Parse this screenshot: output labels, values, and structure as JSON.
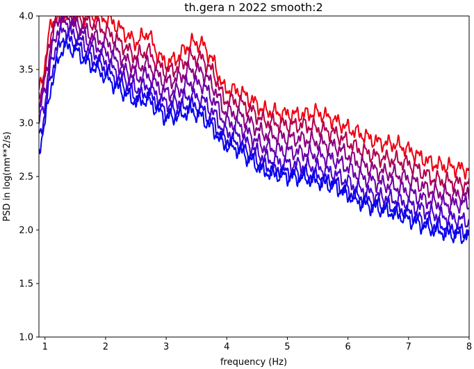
{
  "chart_data": {
    "type": "line",
    "title": "th.gera n 2022 smooth:2",
    "xlabel": "frequency (Hz)",
    "ylabel": "PSD in log(nm**2/s)",
    "xlim": [
      0.9,
      8.0
    ],
    "ylim": [
      1.0,
      4.0
    ],
    "x_ticks": [
      "1",
      "2",
      "3",
      "4",
      "5",
      "6",
      "7",
      "8"
    ],
    "y_ticks": [
      "1.0",
      "1.5",
      "2.0",
      "2.5",
      "3.0",
      "3.5",
      "4.0"
    ],
    "grid": false,
    "series": [
      {
        "color": "#ee0011",
        "points": [
          [
            0.9,
            3.3
          ],
          [
            1.0,
            3.55
          ],
          [
            1.1,
            3.95
          ],
          [
            1.2,
            4.0
          ],
          [
            1.3,
            4.0
          ],
          [
            1.5,
            4.0
          ],
          [
            1.7,
            4.0
          ],
          [
            1.9,
            4.0
          ],
          [
            2.1,
            3.95
          ],
          [
            2.3,
            3.85
          ],
          [
            2.5,
            3.75
          ],
          [
            2.7,
            3.85
          ],
          [
            2.85,
            3.65
          ],
          [
            3.0,
            3.55
          ],
          [
            3.2,
            3.62
          ],
          [
            3.4,
            3.75
          ],
          [
            3.6,
            3.74
          ],
          [
            3.8,
            3.55
          ],
          [
            3.95,
            3.32
          ],
          [
            4.2,
            3.3
          ],
          [
            4.4,
            3.22
          ],
          [
            4.6,
            3.12
          ],
          [
            4.8,
            3.1
          ],
          [
            5.0,
            3.08
          ],
          [
            5.3,
            3.08
          ],
          [
            5.5,
            3.1
          ],
          [
            5.8,
            3.02
          ],
          [
            6.0,
            2.95
          ],
          [
            6.2,
            2.9
          ],
          [
            6.5,
            2.82
          ],
          [
            6.8,
            2.8
          ],
          [
            7.0,
            2.75
          ],
          [
            7.2,
            2.68
          ],
          [
            7.4,
            2.62
          ],
          [
            7.6,
            2.6
          ],
          [
            7.8,
            2.58
          ],
          [
            8.0,
            2.56
          ]
        ]
      },
      {
        "color": "#b0004e",
        "points": [
          [
            0.9,
            3.25
          ],
          [
            1.0,
            3.45
          ],
          [
            1.1,
            3.85
          ],
          [
            1.2,
            4.0
          ],
          [
            1.3,
            4.0
          ],
          [
            1.5,
            4.0
          ],
          [
            1.7,
            3.95
          ],
          [
            1.9,
            3.9
          ],
          [
            2.1,
            3.82
          ],
          [
            2.3,
            3.72
          ],
          [
            2.5,
            3.62
          ],
          [
            2.7,
            3.68
          ],
          [
            2.85,
            3.55
          ],
          [
            3.0,
            3.48
          ],
          [
            3.2,
            3.52
          ],
          [
            3.4,
            3.62
          ],
          [
            3.6,
            3.6
          ],
          [
            3.8,
            3.45
          ],
          [
            3.95,
            3.22
          ],
          [
            4.2,
            3.2
          ],
          [
            4.4,
            3.12
          ],
          [
            4.6,
            3.02
          ],
          [
            4.8,
            3.0
          ],
          [
            5.0,
            2.98
          ],
          [
            5.3,
            2.98
          ],
          [
            5.5,
            2.95
          ],
          [
            5.8,
            2.9
          ],
          [
            6.0,
            2.82
          ],
          [
            6.2,
            2.75
          ],
          [
            6.5,
            2.68
          ],
          [
            6.8,
            2.65
          ],
          [
            7.0,
            2.62
          ],
          [
            7.2,
            2.55
          ],
          [
            7.4,
            2.48
          ],
          [
            7.6,
            2.46
          ],
          [
            7.8,
            2.44
          ],
          [
            8.0,
            2.42
          ]
        ]
      },
      {
        "color": "#8a0080",
        "points": [
          [
            0.9,
            3.2
          ],
          [
            1.0,
            3.38
          ],
          [
            1.1,
            3.75
          ],
          [
            1.2,
            3.95
          ],
          [
            1.3,
            4.0
          ],
          [
            1.5,
            3.95
          ],
          [
            1.7,
            3.85
          ],
          [
            1.9,
            3.78
          ],
          [
            2.1,
            3.72
          ],
          [
            2.3,
            3.6
          ],
          [
            2.5,
            3.52
          ],
          [
            2.7,
            3.55
          ],
          [
            2.85,
            3.45
          ],
          [
            3.0,
            3.38
          ],
          [
            3.2,
            3.42
          ],
          [
            3.4,
            3.5
          ],
          [
            3.6,
            3.48
          ],
          [
            3.8,
            3.32
          ],
          [
            3.95,
            3.12
          ],
          [
            4.2,
            3.08
          ],
          [
            4.4,
            3.0
          ],
          [
            4.6,
            2.9
          ],
          [
            4.8,
            2.88
          ],
          [
            5.0,
            2.86
          ],
          [
            5.3,
            2.85
          ],
          [
            5.5,
            2.82
          ],
          [
            5.8,
            2.78
          ],
          [
            6.0,
            2.7
          ],
          [
            6.2,
            2.62
          ],
          [
            6.5,
            2.55
          ],
          [
            6.8,
            2.52
          ],
          [
            7.0,
            2.48
          ],
          [
            7.2,
            2.42
          ],
          [
            7.4,
            2.36
          ],
          [
            7.6,
            2.34
          ],
          [
            7.8,
            2.32
          ],
          [
            8.0,
            2.32
          ]
        ]
      },
      {
        "color": "#6a00a8",
        "points": [
          [
            0.9,
            3.1
          ],
          [
            1.0,
            3.3
          ],
          [
            1.1,
            3.65
          ],
          [
            1.2,
            3.85
          ],
          [
            1.3,
            3.95
          ],
          [
            1.5,
            3.9
          ],
          [
            1.7,
            3.78
          ],
          [
            1.9,
            3.7
          ],
          [
            2.1,
            3.62
          ],
          [
            2.3,
            3.5
          ],
          [
            2.5,
            3.42
          ],
          [
            2.7,
            3.45
          ],
          [
            2.85,
            3.35
          ],
          [
            3.0,
            3.28
          ],
          [
            3.2,
            3.3
          ],
          [
            3.4,
            3.38
          ],
          [
            3.6,
            3.36
          ],
          [
            3.8,
            3.2
          ],
          [
            3.95,
            3.02
          ],
          [
            4.2,
            2.98
          ],
          [
            4.4,
            2.88
          ],
          [
            4.6,
            2.78
          ],
          [
            4.8,
            2.76
          ],
          [
            5.0,
            2.74
          ],
          [
            5.3,
            2.72
          ],
          [
            5.5,
            2.7
          ],
          [
            5.8,
            2.65
          ],
          [
            6.0,
            2.58
          ],
          [
            6.2,
            2.5
          ],
          [
            6.5,
            2.44
          ],
          [
            6.8,
            2.4
          ],
          [
            7.0,
            2.36
          ],
          [
            7.2,
            2.3
          ],
          [
            7.4,
            2.26
          ],
          [
            7.6,
            2.24
          ],
          [
            7.8,
            2.24
          ],
          [
            8.0,
            2.25
          ]
        ]
      },
      {
        "color": "#4a00c8",
        "points": [
          [
            0.9,
            3.0
          ],
          [
            1.0,
            3.2
          ],
          [
            1.1,
            3.55
          ],
          [
            1.2,
            3.75
          ],
          [
            1.3,
            3.88
          ],
          [
            1.5,
            3.82
          ],
          [
            1.7,
            3.7
          ],
          [
            1.9,
            3.62
          ],
          [
            2.1,
            3.52
          ],
          [
            2.3,
            3.42
          ],
          [
            2.5,
            3.32
          ],
          [
            2.7,
            3.35
          ],
          [
            2.85,
            3.25
          ],
          [
            3.0,
            3.18
          ],
          [
            3.2,
            3.2
          ],
          [
            3.4,
            3.26
          ],
          [
            3.6,
            3.22
          ],
          [
            3.8,
            3.08
          ],
          [
            3.95,
            2.92
          ],
          [
            4.2,
            2.88
          ],
          [
            4.4,
            2.78
          ],
          [
            4.6,
            2.68
          ],
          [
            4.8,
            2.64
          ],
          [
            5.0,
            2.62
          ],
          [
            5.3,
            2.6
          ],
          [
            5.5,
            2.58
          ],
          [
            5.8,
            2.52
          ],
          [
            6.0,
            2.45
          ],
          [
            6.2,
            2.38
          ],
          [
            6.5,
            2.32
          ],
          [
            6.8,
            2.28
          ],
          [
            7.0,
            2.24
          ],
          [
            7.2,
            2.2
          ],
          [
            7.4,
            2.15
          ],
          [
            7.6,
            2.12
          ],
          [
            7.8,
            2.1
          ],
          [
            8.0,
            2.08
          ]
        ]
      },
      {
        "color": "#2400e0",
        "points": [
          [
            0.9,
            2.85
          ],
          [
            1.0,
            3.1
          ],
          [
            1.1,
            3.45
          ],
          [
            1.2,
            3.65
          ],
          [
            1.3,
            3.8
          ],
          [
            1.5,
            3.75
          ],
          [
            1.7,
            3.62
          ],
          [
            1.9,
            3.55
          ],
          [
            2.1,
            3.45
          ],
          [
            2.3,
            3.35
          ],
          [
            2.5,
            3.25
          ],
          [
            2.7,
            3.28
          ],
          [
            2.85,
            3.18
          ],
          [
            3.0,
            3.1
          ],
          [
            3.2,
            3.12
          ],
          [
            3.4,
            3.18
          ],
          [
            3.6,
            3.12
          ],
          [
            3.8,
            2.98
          ],
          [
            3.95,
            2.85
          ],
          [
            4.2,
            2.8
          ],
          [
            4.4,
            2.7
          ],
          [
            4.6,
            2.6
          ],
          [
            4.8,
            2.56
          ],
          [
            5.0,
            2.54
          ],
          [
            5.3,
            2.52
          ],
          [
            5.5,
            2.5
          ],
          [
            5.8,
            2.44
          ],
          [
            6.0,
            2.36
          ],
          [
            6.2,
            2.3
          ],
          [
            6.5,
            2.24
          ],
          [
            6.8,
            2.2
          ],
          [
            7.0,
            2.16
          ],
          [
            7.2,
            2.1
          ],
          [
            7.4,
            2.05
          ],
          [
            7.6,
            2.02
          ],
          [
            7.8,
            2.0
          ],
          [
            8.0,
            1.98
          ]
        ]
      },
      {
        "color": "#0000ee",
        "points": [
          [
            0.9,
            2.75
          ],
          [
            1.0,
            3.0
          ],
          [
            1.1,
            3.35
          ],
          [
            1.2,
            3.55
          ],
          [
            1.3,
            3.72
          ],
          [
            1.5,
            3.68
          ],
          [
            1.7,
            3.56
          ],
          [
            1.9,
            3.48
          ],
          [
            2.1,
            3.38
          ],
          [
            2.3,
            3.28
          ],
          [
            2.5,
            3.2
          ],
          [
            2.7,
            3.22
          ],
          [
            2.85,
            3.12
          ],
          [
            3.0,
            3.05
          ],
          [
            3.2,
            3.06
          ],
          [
            3.4,
            3.12
          ],
          [
            3.6,
            3.05
          ],
          [
            3.8,
            2.92
          ],
          [
            3.95,
            2.8
          ],
          [
            4.2,
            2.75
          ],
          [
            4.4,
            2.65
          ],
          [
            4.6,
            2.55
          ],
          [
            4.8,
            2.52
          ],
          [
            5.0,
            2.5
          ],
          [
            5.3,
            2.48
          ],
          [
            5.5,
            2.46
          ],
          [
            5.8,
            2.4
          ],
          [
            6.0,
            2.32
          ],
          [
            6.2,
            2.26
          ],
          [
            6.5,
            2.2
          ],
          [
            6.8,
            2.15
          ],
          [
            7.0,
            2.1
          ],
          [
            7.2,
            2.05
          ],
          [
            7.4,
            2.0
          ],
          [
            7.6,
            1.98
          ],
          [
            7.8,
            1.95
          ],
          [
            8.0,
            1.93
          ]
        ]
      }
    ]
  }
}
